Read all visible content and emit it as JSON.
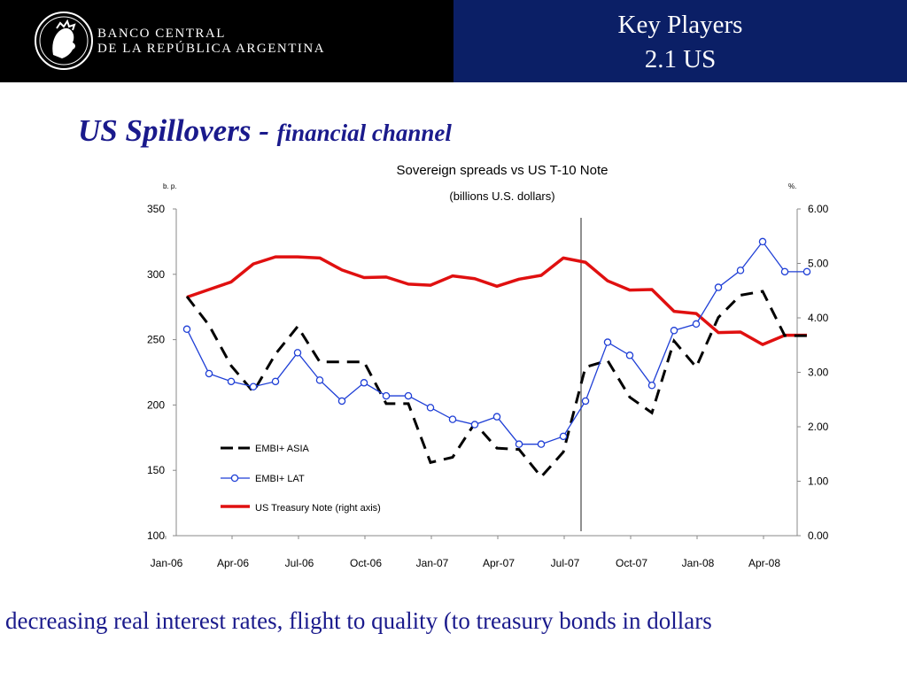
{
  "header": {
    "bank_line1": "BANCO CENTRAL",
    "bank_line2": "DE LA REPÚBLICA ARGENTINA",
    "title_line1": "Key Players",
    "title_line2": "2.1 US",
    "logo_icon": "central-bank-seal-icon"
  },
  "slide": {
    "title_main": "US Spillovers - ",
    "title_sub": "financial channel",
    "footer": "decreasing real interest rates, flight to quality (to treasury bonds in dollars"
  },
  "colors": {
    "header_left": "#000000",
    "header_right": "#0b1f66",
    "title": "#1a1a8c",
    "asia": "#000000",
    "lat": "#1f3fd6",
    "treasury": "#e01010"
  },
  "chart_data": {
    "type": "line",
    "title": "Sovereign spreads vs US T-10 Note",
    "subtitle": "(billions U.S. dollars)",
    "ylabel_left": "b. p.",
    "ylabel_right": "%.",
    "ylim_left": [
      100,
      350
    ],
    "yticks_left": [
      "100",
      "150",
      "200",
      "250",
      "300",
      "350"
    ],
    "ylim_right": [
      0,
      6
    ],
    "yticks_right": [
      "0.00",
      "1.00",
      "2.00",
      "3.00",
      "4.00",
      "5.00",
      "6.00"
    ],
    "x_tick_labels": [
      "Jan-06",
      "Apr-06",
      "Jul-06",
      "Oct-06",
      "Jan-07",
      "Apr-07",
      "Jul-07",
      "Oct-07",
      "Jan-08",
      "Apr-08"
    ],
    "x_months": [
      "Jan-06",
      "Feb-06",
      "Mar-06",
      "Apr-06",
      "May-06",
      "Jun-06",
      "Jul-06",
      "Aug-06",
      "Sep-06",
      "Oct-06",
      "Nov-06",
      "Dec-06",
      "Jan-07",
      "Feb-07",
      "Mar-07",
      "Apr-07",
      "May-07",
      "Jun-07",
      "Jul-07",
      "Aug-07",
      "Sep-07",
      "Oct-07",
      "Nov-07",
      "Dec-07",
      "Jan-08",
      "Feb-08",
      "Mar-08",
      "Apr-08",
      "May-08"
    ],
    "vertical_marker": "Jul-07",
    "legend_position": "bottom-left",
    "grid": false,
    "series": [
      {
        "name": "EMBI+ ASIA",
        "axis": "left",
        "style": "dashed",
        "values": [
          283,
          261,
          230,
          210,
          239,
          260,
          233,
          233,
          233,
          201,
          201,
          156,
          160,
          186,
          167,
          166,
          145,
          164,
          229,
          234,
          206,
          194,
          249,
          229,
          267,
          284,
          287,
          253,
          253
        ]
      },
      {
        "name": "EMBI+ LAT",
        "axis": "left",
        "style": "circle-markers",
        "values": [
          258,
          224,
          218,
          214,
          218,
          240,
          219,
          203,
          217,
          207,
          207,
          198,
          189,
          185,
          191,
          170,
          170,
          176,
          203,
          248,
          238,
          215,
          257,
          262,
          290,
          303,
          325,
          302,
          302
        ]
      },
      {
        "name": "US Treasury Note (right axis)",
        "axis": "right",
        "style": "solid",
        "values": [
          4.38,
          4.52,
          4.66,
          4.99,
          5.12,
          5.12,
          5.1,
          4.88,
          4.74,
          4.75,
          4.62,
          4.6,
          4.77,
          4.72,
          4.58,
          4.71,
          4.78,
          5.1,
          5.02,
          4.68,
          4.51,
          4.52,
          4.12,
          4.08,
          3.73,
          3.74,
          3.51,
          3.68,
          3.68
        ]
      }
    ]
  }
}
